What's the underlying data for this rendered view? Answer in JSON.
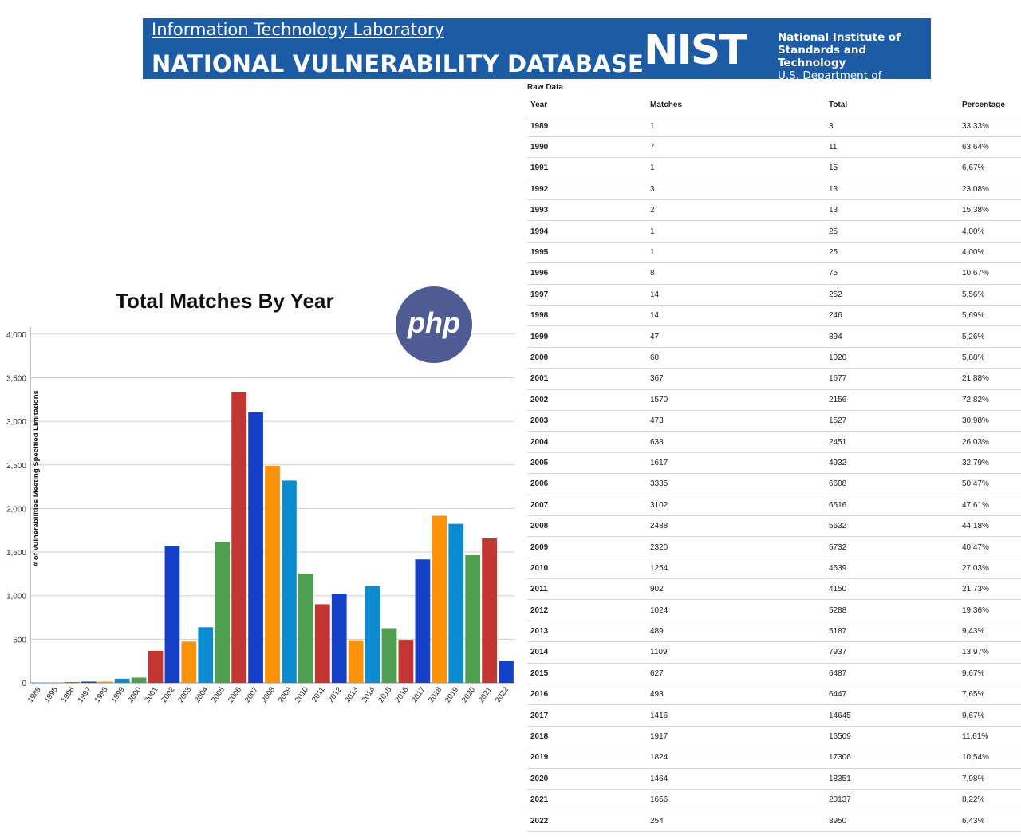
{
  "banner": {
    "lab_link": "Information Technology Laboratory",
    "title": "NATIONAL VULNERABILITY DATABASE",
    "logo_text": "NIST",
    "org_line1": "National Institute of",
    "org_line2": "Standards and Technology",
    "org_line3": "U.S. Department of Commerce"
  },
  "php_logo_text": "php",
  "colors": {
    "banner_bg": "#1c5ba5",
    "series_palette": [
      "#0b8bd1",
      "#4e9f4e",
      "#c23531",
      "#1541c8",
      "#fb9207"
    ]
  },
  "chart_data": {
    "type": "bar",
    "title": "Total Matches By Year",
    "xlabel": "",
    "ylabel": "# of Vulnerabilities Meeting Specified Limitations",
    "ylim": [
      0,
      4300
    ],
    "yticks": [
      0,
      500,
      1000,
      1500,
      2000,
      2500,
      3000,
      3500,
      4000
    ],
    "ytick_labels": [
      "0",
      "500",
      "1,000",
      "1,500",
      "2,000",
      "2,500",
      "3,000",
      "3,500",
      "4,000"
    ],
    "grid": true,
    "categories": [
      "1989",
      "1995",
      "1996",
      "1997",
      "1998",
      "1999",
      "2000",
      "2001",
      "2002",
      "2003",
      "2004",
      "2005",
      "2006",
      "2007",
      "2008",
      "2009",
      "2010",
      "2011",
      "2012",
      "2013",
      "2014",
      "2015",
      "2016",
      "2017",
      "2018",
      "2019",
      "2020",
      "2021",
      "2022"
    ],
    "values": [
      1,
      1,
      8,
      14,
      14,
      47,
      60,
      367,
      1570,
      473,
      638,
      1617,
      3335,
      3102,
      2488,
      2320,
      1254,
      902,
      1024,
      489,
      1109,
      627,
      493,
      1416,
      1917,
      1824,
      1464,
      1656,
      254
    ]
  },
  "table": {
    "title": "Raw Data",
    "headers": [
      "Year",
      "Matches",
      "Total",
      "Percentage"
    ],
    "rows": [
      [
        "1989",
        "1",
        "3",
        "33,33%"
      ],
      [
        "1990",
        "7",
        "11",
        "63,64%"
      ],
      [
        "1991",
        "1",
        "15",
        "6,67%"
      ],
      [
        "1992",
        "3",
        "13",
        "23,08%"
      ],
      [
        "1993",
        "2",
        "13",
        "15,38%"
      ],
      [
        "1994",
        "1",
        "25",
        "4,00%"
      ],
      [
        "1995",
        "1",
        "25",
        "4,00%"
      ],
      [
        "1996",
        "8",
        "75",
        "10,67%"
      ],
      [
        "1997",
        "14",
        "252",
        "5,56%"
      ],
      [
        "1998",
        "14",
        "246",
        "5,69%"
      ],
      [
        "1999",
        "47",
        "894",
        "5,26%"
      ],
      [
        "2000",
        "60",
        "1020",
        "5,88%"
      ],
      [
        "2001",
        "367",
        "1677",
        "21,88%"
      ],
      [
        "2002",
        "1570",
        "2156",
        "72,82%"
      ],
      [
        "2003",
        "473",
        "1527",
        "30,98%"
      ],
      [
        "2004",
        "638",
        "2451",
        "26,03%"
      ],
      [
        "2005",
        "1617",
        "4932",
        "32,79%"
      ],
      [
        "2006",
        "3335",
        "6608",
        "50,47%"
      ],
      [
        "2007",
        "3102",
        "6516",
        "47,61%"
      ],
      [
        "2008",
        "2488",
        "5632",
        "44,18%"
      ],
      [
        "2009",
        "2320",
        "5732",
        "40,47%"
      ],
      [
        "2010",
        "1254",
        "4639",
        "27,03%"
      ],
      [
        "2011",
        "902",
        "4150",
        "21,73%"
      ],
      [
        "2012",
        "1024",
        "5288",
        "19,36%"
      ],
      [
        "2013",
        "489",
        "5187",
        "9,43%"
      ],
      [
        "2014",
        "1109",
        "7937",
        "13,97%"
      ],
      [
        "2015",
        "627",
        "6487",
        "9,67%"
      ],
      [
        "2016",
        "493",
        "6447",
        "7,65%"
      ],
      [
        "2017",
        "1416",
        "14645",
        "9,67%"
      ],
      [
        "2018",
        "1917",
        "16509",
        "11,61%"
      ],
      [
        "2019",
        "1824",
        "17306",
        "10,54%"
      ],
      [
        "2020",
        "1464",
        "18351",
        "7,98%"
      ],
      [
        "2021",
        "1656",
        "20137",
        "8,22%"
      ],
      [
        "2022",
        "254",
        "3950",
        "6,43%"
      ]
    ]
  }
}
